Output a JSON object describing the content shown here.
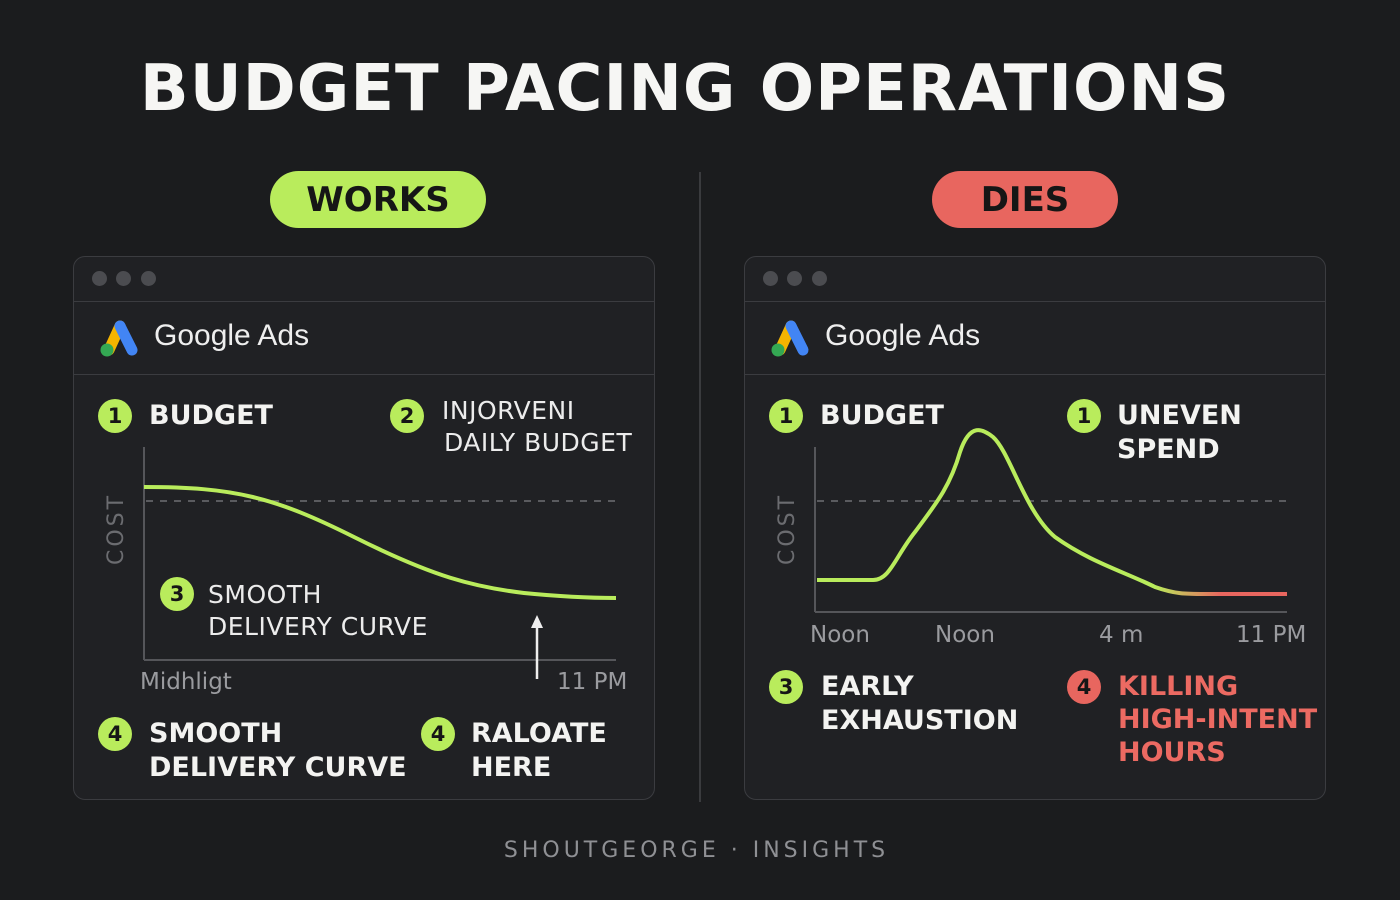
{
  "title": "BUDGET PACING OPERATIONS",
  "footer": "SHOUTGEORGE · INSIGHTS",
  "colors": {
    "works": "#b9ec5c",
    "dies": "#e8665f",
    "background": "#1b1c1e"
  },
  "left": {
    "pill": "WORKS",
    "brand": "Google Ads",
    "items": [
      {
        "num": "1",
        "text": "BUDGET"
      },
      {
        "num": "2",
        "line1": "INJORVENI",
        "line2": "DAILY BUDGET"
      },
      {
        "num": "3",
        "line1": "SMOOTH",
        "line2": "DELIVERY CURVE"
      },
      {
        "num": "4",
        "line1": "SMOOTH",
        "line2": "DELIVERY CURVE"
      },
      {
        "num": "4",
        "line1": "RALOATE",
        "line2": "HERE"
      }
    ],
    "y_axis_label": "COST",
    "x_labels": [
      "Midhligt",
      "11 PM"
    ]
  },
  "right": {
    "pill": "DIES",
    "brand": "Google Ads",
    "items": [
      {
        "num": "1",
        "text": "BUDGET"
      },
      {
        "num": "1",
        "line1": "UNEVEN",
        "line2": "SPEND"
      },
      {
        "num": "3",
        "line1": "EARLY",
        "line2": "EXHAUSTION"
      },
      {
        "num": "4",
        "line1": "KILLING",
        "line2": "HIGH-INTENT",
        "line3": "HOURS"
      }
    ],
    "y_axis_label": "COST",
    "x_labels": [
      "Noon",
      "Noon",
      "4 m",
      "11 PM"
    ]
  }
}
